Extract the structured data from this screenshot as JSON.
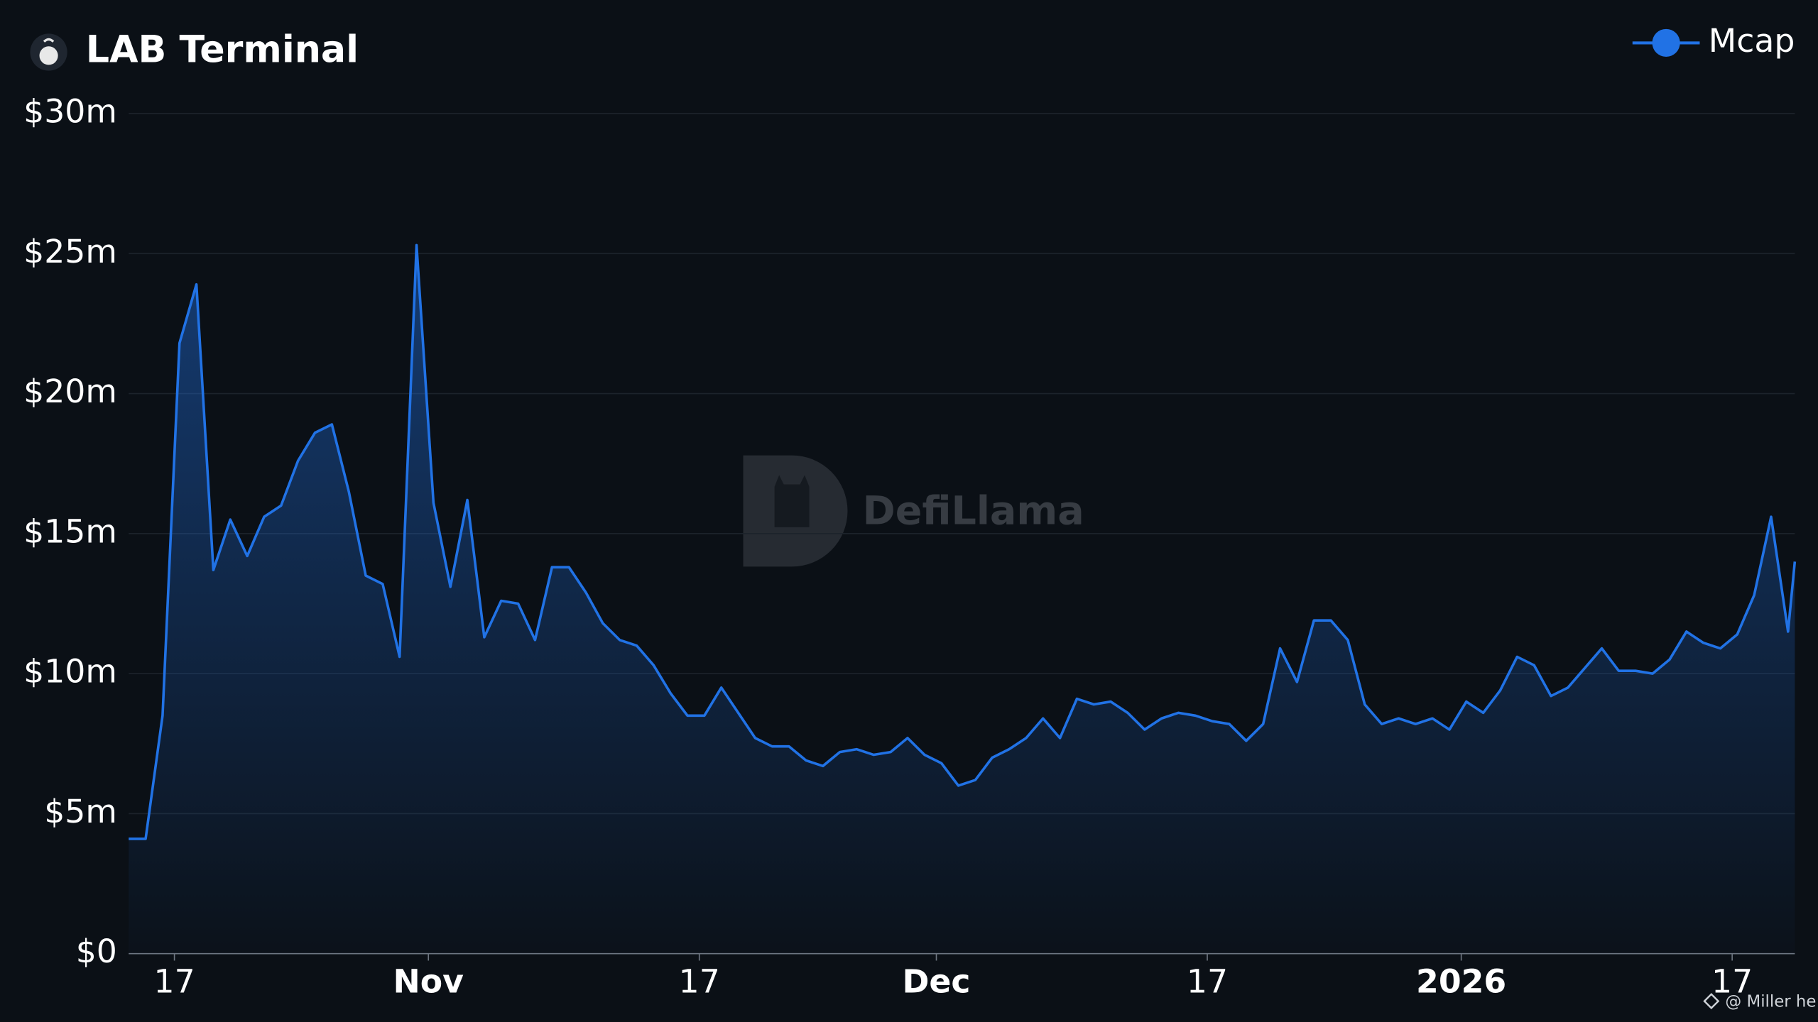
{
  "chart_data": {
    "type": "line",
    "title": "LAB Terminal",
    "x": [
      0,
      1,
      2,
      3,
      4,
      5,
      6,
      7,
      8,
      9,
      10,
      11,
      12,
      13,
      14,
      15,
      16,
      17,
      18,
      19,
      20,
      21,
      22,
      23,
      24,
      25,
      26,
      27,
      28,
      29,
      30,
      31,
      32,
      33,
      34,
      35,
      36,
      37,
      38,
      39,
      40,
      41,
      42,
      43,
      44,
      45,
      46,
      47,
      48,
      49,
      50,
      51,
      52,
      53,
      54,
      55,
      56,
      57,
      58,
      59,
      60,
      61,
      62,
      63,
      64,
      65,
      66,
      67,
      68,
      69,
      70,
      71,
      72,
      73,
      74,
      75,
      76,
      77,
      78,
      79,
      80,
      81,
      82,
      83,
      84,
      85,
      86,
      87,
      88,
      89,
      90,
      91,
      92,
      93,
      94,
      95,
      96,
      97,
      98,
      98.4
    ],
    "series": [
      {
        "name": "Mcap",
        "color": "#2172e5",
        "values": [
          4.1,
          4.1,
          8.5,
          21.8,
          23.9,
          13.7,
          15.5,
          14.2,
          15.6,
          16.0,
          17.6,
          18.6,
          18.9,
          16.5,
          13.5,
          13.2,
          10.6,
          25.3,
          16.1,
          13.1,
          16.2,
          11.3,
          12.6,
          12.5,
          11.2,
          13.8,
          13.8,
          12.9,
          11.8,
          11.2,
          11.0,
          10.3,
          9.3,
          8.5,
          8.5,
          9.5,
          8.6,
          7.7,
          7.4,
          7.4,
          6.9,
          6.7,
          7.2,
          7.3,
          7.1,
          7.2,
          7.7,
          7.1,
          6.8,
          6.0,
          6.2,
          7.0,
          7.3,
          7.7,
          8.4,
          7.7,
          9.1,
          8.9,
          9.0,
          8.6,
          8.0,
          8.4,
          8.6,
          8.5,
          8.3,
          8.2,
          7.6,
          8.2,
          10.9,
          9.7,
          11.9,
          11.9,
          11.2,
          8.9,
          8.2,
          8.4,
          8.2,
          8.4,
          8.0,
          9.0,
          8.6,
          9.4,
          10.6,
          10.3,
          9.2,
          9.5,
          10.2,
          10.9,
          10.1,
          10.1,
          10.0,
          10.5,
          11.5,
          11.1,
          10.9,
          11.4,
          12.8,
          15.6,
          11.5,
          14.0
        ]
      }
    ],
    "xlim": [
      0,
      98.4
    ],
    "xticks": [
      {
        "value": 2.7,
        "label": "17"
      },
      {
        "value": 17.7,
        "label": "Nov"
      },
      {
        "value": 33.7,
        "label": "17"
      },
      {
        "value": 47.7,
        "label": "Dec"
      },
      {
        "value": 63.7,
        "label": "17"
      },
      {
        "value": 78.7,
        "label": "2026"
      },
      {
        "value": 94.7,
        "label": "17"
      }
    ],
    "ylim": [
      0,
      30
    ],
    "yticks": [
      {
        "value": 0,
        "label": "$0"
      },
      {
        "value": 5,
        "label": "$5m"
      },
      {
        "value": 10,
        "label": "$10m"
      },
      {
        "value": 15,
        "label": "$15m"
      },
      {
        "value": 20,
        "label": "$20m"
      },
      {
        "value": 25,
        "label": "$25m"
      },
      {
        "value": 30,
        "label": "$30m"
      }
    ],
    "grid": true,
    "legend": "top-right"
  },
  "watermark": "DefiLlama",
  "credit": "@ Miller he"
}
